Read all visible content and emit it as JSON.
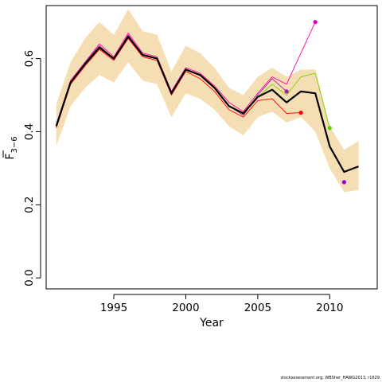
{
  "chart_data": {
    "type": "line",
    "title": "",
    "xlabel": "Year",
    "ylabel": "F",
    "ylabel_subscript": "3−6",
    "xlim": [
      1990.3,
      2013.3
    ],
    "ylim": [
      -0.03,
      0.745
    ],
    "x_ticks": [
      1995,
      2000,
      2005,
      2010
    ],
    "y_ticks": [
      0.0,
      0.2,
      0.4,
      0.6
    ],
    "y_tick_labels": [
      "0.0",
      "0.2",
      "0.4",
      "0.6"
    ],
    "grid": false,
    "legend": "none",
    "colors": {
      "band": "#f5deb3",
      "main": "#000000",
      "retro_red": "#ff0000",
      "retro_magenta": "#ff00aa",
      "retro_purple": "#a020a0",
      "retro_green": "#7ad000"
    },
    "confidence_band": {
      "x": [
        1991,
        1992,
        1993,
        1994,
        1995,
        1996,
        1997,
        1998,
        1999,
        2000,
        2001,
        2002,
        2003,
        2004,
        2005,
        2006,
        2007,
        2008,
        2009,
        2010,
        2011,
        2012
      ],
      "lower": [
        0.36,
        0.47,
        0.52,
        0.555,
        0.535,
        0.59,
        0.54,
        0.53,
        0.44,
        0.505,
        0.49,
        0.46,
        0.415,
        0.39,
        0.44,
        0.455,
        0.425,
        0.44,
        0.4,
        0.3,
        0.235,
        0.24
      ],
      "upper": [
        0.475,
        0.59,
        0.655,
        0.7,
        0.665,
        0.735,
        0.675,
        0.665,
        0.565,
        0.635,
        0.615,
        0.575,
        0.52,
        0.5,
        0.55,
        0.575,
        0.55,
        0.57,
        0.57,
        0.415,
        0.35,
        0.375
      ]
    },
    "series": [
      {
        "role": "main",
        "x": [
          1991,
          1992,
          1993,
          1994,
          1995,
          1996,
          1997,
          1998,
          1999,
          2000,
          2001,
          2002,
          2003,
          2004,
          2005,
          2006,
          2007,
          2008,
          2009,
          2010,
          2011,
          2012
        ],
        "y": [
          0.415,
          0.535,
          0.585,
          0.63,
          0.6,
          0.66,
          0.61,
          0.6,
          0.505,
          0.57,
          0.555,
          0.52,
          0.47,
          0.45,
          0.495,
          0.515,
          0.48,
          0.51,
          0.505,
          0.36,
          0.29,
          0.305
        ]
      },
      {
        "role": "retro_red",
        "x": [
          1991,
          1992,
          1993,
          1994,
          1995,
          1996,
          1997,
          1998,
          1999,
          2000,
          2001,
          2002,
          2003,
          2004,
          2005,
          2006,
          2007,
          2008
        ],
        "y": [
          0.41,
          0.53,
          0.58,
          0.625,
          0.595,
          0.655,
          0.605,
          0.595,
          0.5,
          0.565,
          0.545,
          0.51,
          0.46,
          0.44,
          0.485,
          0.49,
          0.45,
          0.452
        ]
      },
      {
        "role": "retro_magenta",
        "x": [
          1991,
          1992,
          1993,
          1994,
          1995,
          1996,
          1997,
          1998,
          1999,
          2000,
          2001,
          2002,
          2003,
          2004,
          2005,
          2006,
          2007,
          2008,
          2009
        ],
        "y": [
          0.42,
          0.54,
          0.59,
          0.64,
          0.605,
          0.67,
          0.615,
          0.605,
          0.51,
          0.575,
          0.56,
          0.525,
          0.48,
          0.455,
          0.505,
          0.55,
          0.53,
          0.615,
          0.7
        ]
      },
      {
        "role": "retro_purple",
        "x": [
          1991,
          1992,
          1993,
          1994,
          1995,
          1996,
          1997,
          1998,
          1999,
          2000,
          2001,
          2002,
          2003,
          2004,
          2005,
          2006,
          2007
        ],
        "y": [
          0.415,
          0.535,
          0.59,
          0.635,
          0.6,
          0.665,
          0.61,
          0.6,
          0.505,
          0.57,
          0.555,
          0.52,
          0.47,
          0.445,
          0.5,
          0.545,
          0.51
        ]
      },
      {
        "role": "retro_green",
        "x": [
          1991,
          1992,
          1993,
          1994,
          1995,
          1996,
          1997,
          1998,
          1999,
          2000,
          2001,
          2002,
          2003,
          2004,
          2005,
          2006,
          2007,
          2008,
          2009,
          2010
        ],
        "y": [
          0.415,
          0.535,
          0.585,
          0.63,
          0.6,
          0.66,
          0.61,
          0.6,
          0.505,
          0.57,
          0.555,
          0.52,
          0.47,
          0.45,
          0.495,
          0.53,
          0.5,
          0.55,
          0.56,
          0.41
        ]
      }
    ],
    "endpoints": [
      {
        "role": "retro_red",
        "x": 2008,
        "y": 0.452
      },
      {
        "role": "retro_magenta",
        "x": 2009,
        "y": 0.7
      },
      {
        "role": "retro_purple",
        "x": 2007,
        "y": 0.51
      },
      {
        "role": "retro_green",
        "x": 2010,
        "y": 0.41
      },
      {
        "role": "main_purple",
        "x": 2011,
        "y": 0.262
      }
    ],
    "endpoint_colors": {
      "retro_red": "#ff0000",
      "retro_magenta": "#dd00aa",
      "retro_purple": "#a020a0",
      "retro_green": "#66cc00",
      "main_purple": "#9900cc"
    }
  },
  "footnote": "stockassessment.org, WBSher_HAWG2013, r1629"
}
